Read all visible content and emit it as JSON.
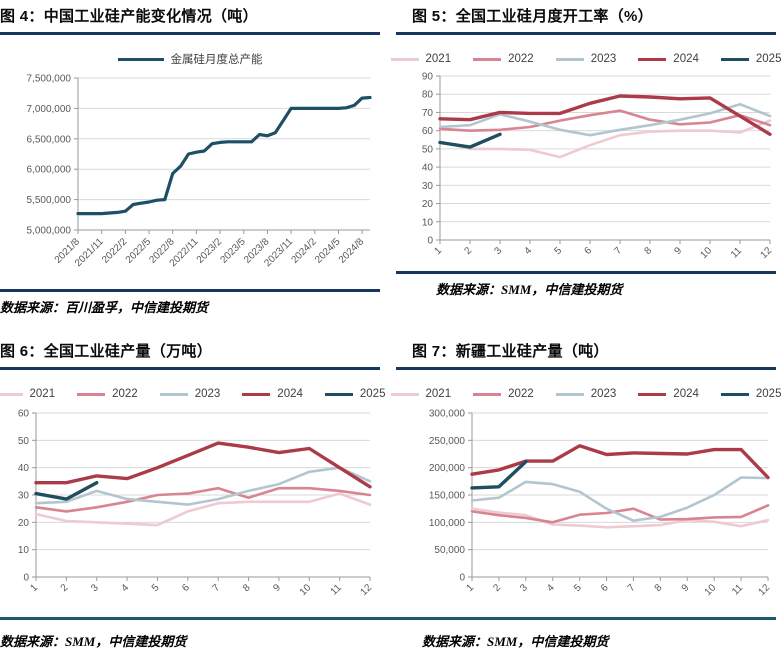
{
  "colors": {
    "title_rule": "#17375e",
    "source_rule": "#17375e",
    "bottom_rule": "#1e5a6a",
    "grid_line": "#d9d9d9",
    "axis_line": "#9a9a9a",
    "axis_text": "#595959"
  },
  "chart_data": [
    {
      "type": "line",
      "header": "图 4：中国工业硅产能变化情况（吨）",
      "source": "数据来源：百川盈孚，中信建投期货",
      "xlabel": "",
      "ylabel": "",
      "ylim": [
        5000000,
        7500000
      ],
      "ytick_step": 500000,
      "y_thousands": true,
      "grid": true,
      "legend_position": "top",
      "x_labels": [
        "2021/8",
        "2021/11",
        "2022/2",
        "2022/5",
        "2022/8",
        "2022/11",
        "2023/2",
        "2023/5",
        "2023/8",
        "2023/11",
        "2024/2",
        "2024/5",
        "2024/8"
      ],
      "x_tick_every": 3,
      "n_points": 38,
      "series": [
        {
          "name": "金属硅月度总产能",
          "color": "#1d4f66",
          "stroke_width": 3.2,
          "values": [
            5270000,
            5270000,
            5270000,
            5270000,
            5280000,
            5290000,
            5310000,
            5420000,
            5440000,
            5460000,
            5490000,
            5500000,
            5930000,
            6050000,
            6250000,
            6280000,
            6300000,
            6420000,
            6440000,
            6450000,
            6450000,
            6450000,
            6450000,
            6570000,
            6550000,
            6600000,
            6800000,
            7000000,
            7000000,
            7000000,
            7000000,
            7000000,
            7000000,
            7000000,
            7010000,
            7050000,
            7170000,
            7180000
          ]
        }
      ]
    },
    {
      "type": "line",
      "header": "图 5：全国工业硅月度开工率（%）",
      "source": "数据来源：SMM，中信建投期货",
      "xlabel": "",
      "ylabel": "",
      "ylim": [
        0,
        90
      ],
      "ytick_step": 10,
      "y_thousands": false,
      "grid": true,
      "legend_position": "top",
      "x_labels": [
        "1",
        "2",
        "3",
        "4",
        "5",
        "6",
        "7",
        "8",
        "9",
        "10",
        "11",
        "12"
      ],
      "x_tick_every": 1,
      "n_points": 12,
      "series": [
        {
          "name": "2021",
          "color": "#eecad2",
          "stroke_width": 2.6,
          "values": [
            54,
            50,
            50,
            49.5,
            45.5,
            52,
            57.5,
            59.5,
            60,
            60,
            59,
            65.5
          ]
        },
        {
          "name": "2022",
          "color": "#d88492",
          "stroke_width": 2.6,
          "values": [
            61,
            60,
            60.5,
            62,
            65.5,
            68.5,
            71,
            66,
            63.5,
            64.5,
            68.5,
            63
          ]
        },
        {
          "name": "2023",
          "color": "#b3c6cf",
          "stroke_width": 2.6,
          "values": [
            62,
            63,
            69,
            65,
            60.5,
            57.5,
            60.5,
            63,
            66,
            69.5,
            74.5,
            68
          ]
        },
        {
          "name": "2024",
          "color": "#ac3b49",
          "stroke_width": 3.4,
          "values": [
            66.5,
            66,
            70,
            69.5,
            69.5,
            75,
            79,
            78.5,
            77.5,
            78,
            68,
            58
          ]
        },
        {
          "name": "2025",
          "color": "#1f4e5f",
          "stroke_width": 3.4,
          "values": [
            53.5,
            51,
            58
          ]
        }
      ]
    },
    {
      "type": "line",
      "header": "图 6：全国工业硅产量（万吨）",
      "source": "数据来源：SMM，中信建投期货",
      "xlabel": "",
      "ylabel": "",
      "ylim": [
        0,
        60
      ],
      "ytick_step": 10,
      "y_thousands": false,
      "grid": true,
      "legend_position": "top",
      "x_labels": [
        "1",
        "2",
        "3",
        "4",
        "5",
        "6",
        "7",
        "8",
        "9",
        "10",
        "11",
        "12"
      ],
      "x_tick_every": 1,
      "n_points": 12,
      "series": [
        {
          "name": "2021",
          "color": "#eecad2",
          "stroke_width": 2.6,
          "values": [
            23,
            20.5,
            20,
            19.5,
            19,
            24,
            27,
            27.5,
            27.5,
            27.5,
            30.5,
            26.5
          ]
        },
        {
          "name": "2022",
          "color": "#d88492",
          "stroke_width": 2.6,
          "values": [
            25.5,
            24,
            25.5,
            27.5,
            30,
            30.5,
            32.5,
            29,
            32.5,
            32.5,
            31.5,
            30
          ]
        },
        {
          "name": "2023",
          "color": "#b3c6cf",
          "stroke_width": 2.6,
          "values": [
            27,
            27.5,
            31.5,
            28.5,
            27.5,
            26.5,
            28.5,
            31.5,
            34,
            38.5,
            40,
            35
          ]
        },
        {
          "name": "2024",
          "color": "#ac3b49",
          "stroke_width": 3.4,
          "values": [
            34.5,
            34.5,
            37,
            36,
            40,
            44.5,
            49,
            47.5,
            45.5,
            47,
            40,
            33
          ]
        },
        {
          "name": "2025",
          "color": "#1f4e5f",
          "stroke_width": 3.4,
          "values": [
            30.5,
            28.5,
            34.5
          ]
        }
      ]
    },
    {
      "type": "line",
      "header": "图 7：新疆工业硅产量（吨）",
      "source": "数据来源：SMM，中信建投期货",
      "xlabel": "",
      "ylabel": "",
      "ylim": [
        0,
        300000
      ],
      "ytick_step": 50000,
      "y_thousands": true,
      "grid": true,
      "legend_position": "top",
      "x_labels": [
        "1",
        "2",
        "3",
        "4",
        "5",
        "6",
        "7",
        "8",
        "9",
        "10",
        "11",
        "12"
      ],
      "x_tick_every": 1,
      "n_points": 12,
      "series": [
        {
          "name": "2021",
          "color": "#eecad2",
          "stroke_width": 2.6,
          "values": [
            125000,
            118000,
            113000,
            96000,
            94000,
            91000,
            93000,
            95000,
            104000,
            101000,
            93000,
            104000
          ]
        },
        {
          "name": "2022",
          "color": "#d88492",
          "stroke_width": 2.6,
          "values": [
            120000,
            113000,
            108000,
            100000,
            114000,
            117000,
            125000,
            105000,
            106000,
            109000,
            110000,
            131000
          ]
        },
        {
          "name": "2023",
          "color": "#b3c6cf",
          "stroke_width": 2.6,
          "values": [
            140000,
            145000,
            174000,
            170000,
            156000,
            125000,
            103000,
            110000,
            127000,
            150000,
            182000,
            181000
          ]
        },
        {
          "name": "2024",
          "color": "#ac3b49",
          "stroke_width": 3.4,
          "values": [
            188000,
            196000,
            212000,
            212000,
            240000,
            224000,
            227000,
            226000,
            225000,
            233000,
            233000,
            182000
          ]
        },
        {
          "name": "2025",
          "color": "#1f4e5f",
          "stroke_width": 3.4,
          "values": [
            163000,
            165000,
            211000
          ]
        }
      ]
    }
  ]
}
